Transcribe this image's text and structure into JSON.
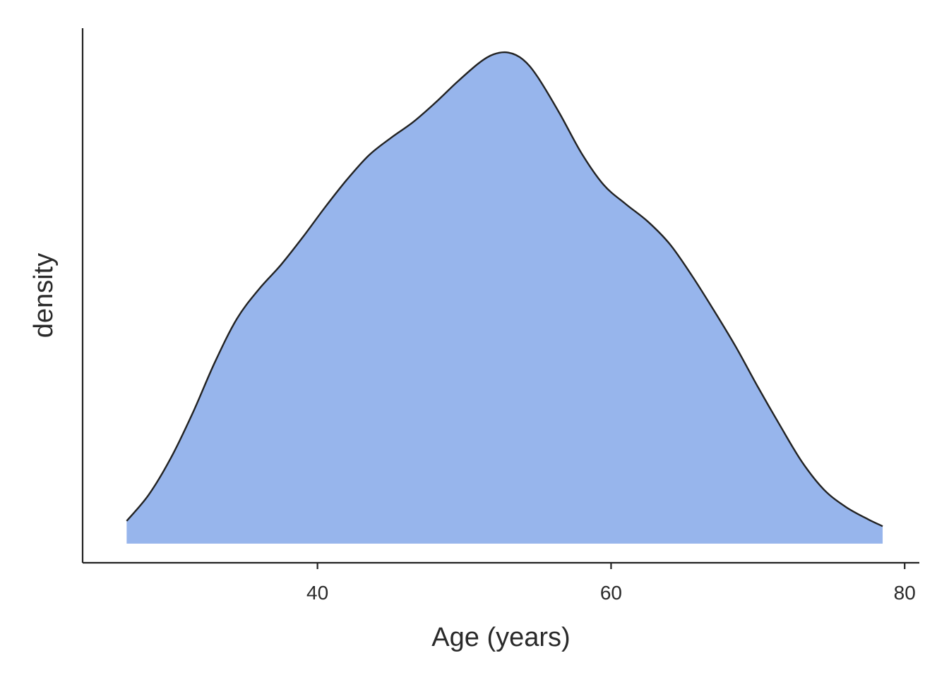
{
  "chart_data": {
    "type": "area",
    "subtype": "density",
    "xlabel": "Age (years)",
    "ylabel": "density",
    "xlim": [
      24,
      81
    ],
    "ylim": [
      -0.0011,
      0.0296
    ],
    "x_ticks": [
      40,
      60,
      80
    ],
    "y_ticks": [],
    "grid": false,
    "fill_color": "#97b5ec",
    "line_color": "#222222",
    "series": [
      {
        "x": [
          27,
          28.5,
          30,
          31.5,
          33,
          34.5,
          36,
          37.5,
          39,
          40.5,
          42,
          43.5,
          45,
          46.5,
          48,
          49.5,
          51,
          52,
          53,
          54,
          55,
          56.5,
          58,
          59.5,
          61,
          62.5,
          64,
          65.5,
          67,
          68.5,
          70,
          71.5,
          73,
          74.5,
          76,
          77.5,
          78.5
        ],
        "y": [
          0.0013,
          0.0028,
          0.0049,
          0.0075,
          0.0104,
          0.0129,
          0.0146,
          0.016,
          0.0176,
          0.0193,
          0.0209,
          0.0223,
          0.0233,
          0.0242,
          0.0253,
          0.0265,
          0.0276,
          0.0281,
          0.0282,
          0.0278,
          0.0268,
          0.0247,
          0.0224,
          0.0206,
          0.0195,
          0.0185,
          0.0172,
          0.0154,
          0.0134,
          0.0113,
          0.009,
          0.0068,
          0.0047,
          0.0031,
          0.0021,
          0.0014,
          0.001
        ]
      }
    ]
  }
}
